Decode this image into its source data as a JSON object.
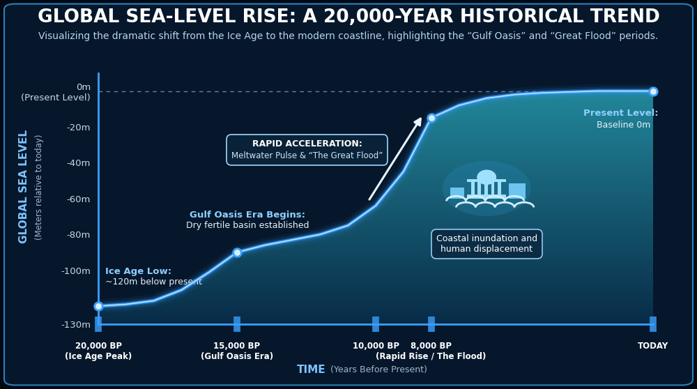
{
  "chart_data": {
    "type": "line",
    "title": "GLOBAL SEA-LEVEL RISE: A 20,000-YEAR HISTORICAL TREND",
    "subtitle": "Visualizing the dramatic shift from the Ice Age to the modern coastline, highlighting the “Gulf Oasis” and “Great Flood” periods.",
    "y_label": "GLOBAL SEA LEVEL",
    "y_label_note": "(Meters relative to today)",
    "x_label": "TIME",
    "x_label_note": "(Years Before Present)",
    "x": [
      20000,
      19000,
      18000,
      17000,
      16000,
      15000,
      14000,
      13000,
      12000,
      11000,
      10000,
      9000,
      8000,
      7000,
      6000,
      5000,
      4000,
      3000,
      2000,
      1000,
      0
    ],
    "values": [
      -120,
      -119,
      -117,
      -111,
      -101,
      -90,
      -86,
      -83,
      -80,
      -75,
      -64,
      -45,
      -15,
      -8,
      -4,
      -2,
      -1,
      -0.5,
      0,
      0,
      0
    ],
    "color": "#3aa0ff",
    "xlim": [
      20000,
      0
    ],
    "xticks": [
      {
        "value": 20000,
        "label": "20,000 BP\n(Ice Age Peak)"
      },
      {
        "value": 15000,
        "label": "15,000 BP\n(Gulf Oasis Era)"
      },
      {
        "value": 10000,
        "label": "10,000 BP"
      },
      {
        "value": 8000,
        "label": "8,000 BP\n(Rapid Rise / The Flood)"
      },
      {
        "value": 0,
        "label": "TODAY"
      }
    ],
    "ylim": [
      -130,
      10
    ],
    "yticks": [
      {
        "value": 0,
        "label": "0m\n(Present Level)"
      },
      {
        "value": -20,
        "label": "-20m"
      },
      {
        "value": -40,
        "label": "-40m"
      },
      {
        "value": -60,
        "label": "-60m"
      },
      {
        "value": -80,
        "label": "-80m"
      },
      {
        "value": -100,
        "label": "-100m"
      },
      {
        "value": -130,
        "label": "-130m"
      }
    ],
    "baseline": 0,
    "grid": false,
    "annotations": [
      {
        "x": 20000,
        "title": "Ice Age Low:",
        "text": "~120m below present"
      },
      {
        "x": 15000,
        "title": "Gulf Oasis Era Begins:",
        "text": "Dry fertile basin established"
      },
      {
        "x": 8000,
        "x_start": 10000,
        "title": "RAPID ACCELERATION:",
        "text": "Meltwater Pulse & “The Great Flood”"
      },
      {
        "x": 0,
        "title": "Present Level:",
        "text": "Baseline 0m"
      },
      {
        "text": "Coastal inundation and human displacement"
      }
    ]
  }
}
